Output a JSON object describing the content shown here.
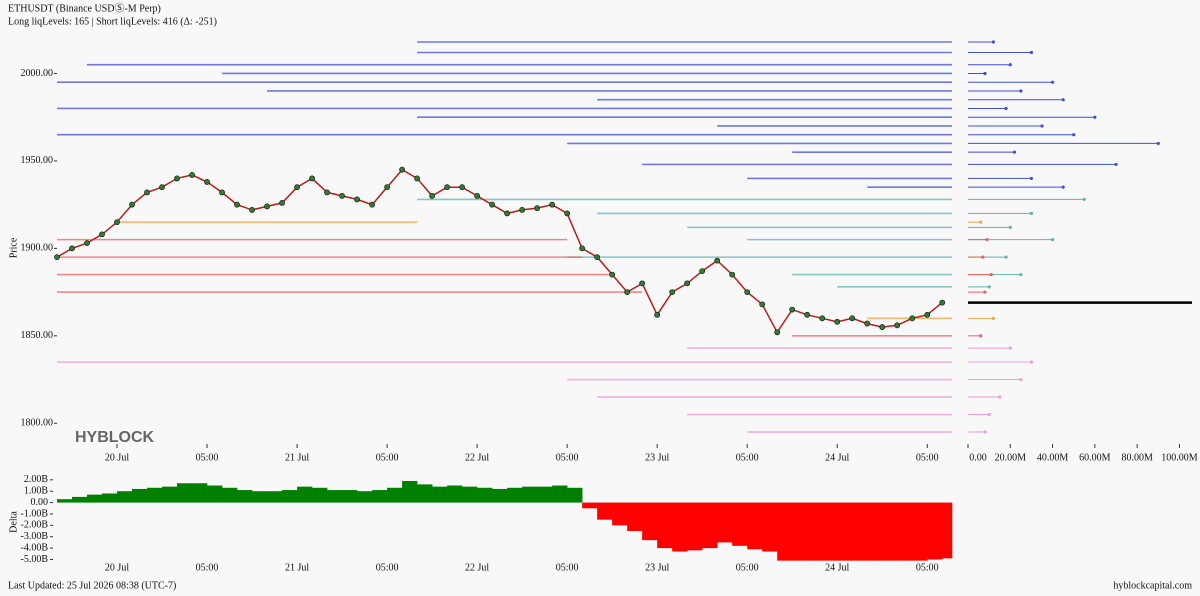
{
  "header": {
    "title": "ETHUSDT (Binance USDⓈ-M Perp)",
    "subtitle": "Long liqLevels: 165 | Short liqLevels: 416 (Δ: -251)",
    "watermark": "HYBLOCK"
  },
  "footer": {
    "updated": "Last Updated: 25 Jul 2026 08:38 (UTC-7)",
    "site": "hyblockcapital.com"
  },
  "chart_data": [
    {
      "type": "line",
      "y_label": "Price",
      "color": "#b71c1c",
      "marker_color": "#2e7d32",
      "current_color": "#000000",
      "x": [
        -8,
        -6,
        -4,
        -2,
        0,
        2,
        4,
        6,
        8,
        10,
        12,
        14,
        16,
        18,
        20,
        22,
        24,
        26,
        28,
        30,
        32,
        34,
        36,
        38,
        40,
        42,
        44,
        46,
        48,
        50,
        52,
        54,
        56,
        58,
        60,
        62,
        64,
        66,
        68,
        70,
        72,
        74,
        76,
        78,
        80,
        82,
        84,
        86,
        88,
        90,
        92,
        94,
        96,
        98,
        100,
        102,
        104,
        106,
        108,
        110
      ],
      "values": [
        1895,
        1900,
        1903,
        1908,
        1915,
        1925,
        1932,
        1935,
        1940,
        1942,
        1938,
        1932,
        1925,
        1922,
        1924,
        1926,
        1935,
        1940,
        1932,
        1930,
        1928,
        1925,
        1935,
        1945,
        1940,
        1930,
        1935,
        1935,
        1930,
        1925,
        1920,
        1922,
        1923,
        1925,
        1920,
        1900,
        1895,
        1885,
        1875,
        1880,
        1862,
        1875,
        1880,
        1887,
        1893,
        1885,
        1875,
        1868,
        1852,
        1865,
        1862,
        1860,
        1858,
        1860,
        1857,
        1855,
        1856,
        1860,
        1862,
        1869
      ],
      "xlim": [
        -8,
        111.3
      ],
      "ylim": [
        1779,
        2022
      ],
      "xticks": [
        {
          "value": 0,
          "label": "20 Jul"
        },
        {
          "value": 12,
          "label": "05:00"
        },
        {
          "value": 24,
          "label": "21 Jul"
        },
        {
          "value": 36,
          "label": "05:00"
        },
        {
          "value": 48,
          "label": "22 Jul"
        },
        {
          "value": 60,
          "label": "05:00"
        },
        {
          "value": 72,
          "label": "23 Jul"
        },
        {
          "value": 84,
          "label": "05:00"
        },
        {
          "value": 96,
          "label": "24 Jul"
        },
        {
          "value": 108,
          "label": "05:00"
        }
      ],
      "yticks": [
        {
          "value": 1800,
          "label": "1800.00"
        },
        {
          "value": 1850,
          "label": "1850.00"
        },
        {
          "value": 1900,
          "label": "1900.00"
        },
        {
          "value": 1950,
          "label": "1950.00"
        },
        {
          "value": 2000,
          "label": "2000.00"
        }
      ],
      "levels": [
        {
          "price": 2018,
          "start": 40,
          "end": 111.3,
          "size": 12,
          "color": "#3f4fd6"
        },
        {
          "price": 2012,
          "start": 40,
          "end": 111.3,
          "size": 30,
          "color": "#3f4fd6"
        },
        {
          "price": 2005,
          "start": -4,
          "end": 111.3,
          "size": 20,
          "color": "#3f4fd6"
        },
        {
          "price": 2000,
          "start": 14,
          "end": 111.3,
          "size": 8,
          "color": "#3f4fd6"
        },
        {
          "price": 1995,
          "start": -8,
          "end": 111.3,
          "size": 40,
          "color": "#3f4fd6"
        },
        {
          "price": 1990,
          "start": 20,
          "end": 111.3,
          "size": 25,
          "color": "#3f4fd6"
        },
        {
          "price": 1985,
          "start": 64,
          "end": 111.3,
          "size": 45,
          "color": "#3f4fd6"
        },
        {
          "price": 1980,
          "start": -8,
          "end": 111.3,
          "size": 18,
          "color": "#3f4fd6"
        },
        {
          "price": 1975,
          "start": 40,
          "end": 111.3,
          "size": 60,
          "color": "#3f4fd6"
        },
        {
          "price": 1970,
          "start": 80,
          "end": 111.3,
          "size": 35,
          "color": "#3f4fd6"
        },
        {
          "price": 1965,
          "start": -8,
          "end": 111.3,
          "size": 50,
          "color": "#3f4fd6"
        },
        {
          "price": 1960,
          "start": 60,
          "end": 111.3,
          "size": 90,
          "color": "#3f4fd6"
        },
        {
          "price": 1955,
          "start": 90,
          "end": 111.3,
          "size": 22,
          "color": "#3f4fd6"
        },
        {
          "price": 1948,
          "start": 70,
          "end": 111.3,
          "size": 70,
          "color": "#3f4fd6"
        },
        {
          "price": 1940,
          "start": 84,
          "end": 111.3,
          "size": 30,
          "color": "#3f4fd6"
        },
        {
          "price": 1935,
          "start": 100,
          "end": 111.3,
          "size": 45,
          "color": "#3f4fd6"
        },
        {
          "price": 1928,
          "start": 40,
          "end": 111.3,
          "size": 55,
          "color": "#5fb3b0"
        },
        {
          "price": 1920,
          "start": 64,
          "end": 111.3,
          "size": 30,
          "color": "#5fb3b0"
        },
        {
          "price": 1912,
          "start": 76,
          "end": 111.3,
          "size": 20,
          "color": "#5fb3b0"
        },
        {
          "price": 1905,
          "start": 84,
          "end": 111.3,
          "size": 40,
          "color": "#5fb3b0"
        },
        {
          "price": 1895,
          "start": 60,
          "end": 111.3,
          "size": 18,
          "color": "#5fb3b0"
        },
        {
          "price": 1885,
          "start": 90,
          "end": 111.3,
          "size": 25,
          "color": "#5fb3b0"
        },
        {
          "price": 1878,
          "start": 96,
          "end": 111.3,
          "size": 10,
          "color": "#5fb3b0"
        },
        {
          "price": 1915,
          "start": 0,
          "end": 40,
          "size": 6,
          "color": "#f5a04a"
        },
        {
          "price": 1905,
          "start": -8,
          "end": 60,
          "size": 9,
          "color": "#f06060"
        },
        {
          "price": 1895,
          "start": -8,
          "end": 62,
          "size": 7,
          "color": "#f06060"
        },
        {
          "price": 1885,
          "start": -8,
          "end": 66,
          "size": 11,
          "color": "#f06060"
        },
        {
          "price": 1875,
          "start": -8,
          "end": 70,
          "size": 8,
          "color": "#f06060"
        },
        {
          "price": 1860,
          "start": 100,
          "end": 111.3,
          "size": 12,
          "color": "#f5a04a"
        },
        {
          "price": 1850,
          "start": 90,
          "end": 111.3,
          "size": 6,
          "color": "#f06060"
        },
        {
          "price": 1843,
          "start": 76,
          "end": 111.3,
          "size": 20,
          "color": "#f29ad8"
        },
        {
          "price": 1835,
          "start": -8,
          "end": 111.3,
          "size": 30,
          "color": "#f29ad8"
        },
        {
          "price": 1825,
          "start": 60,
          "end": 111.3,
          "size": 25,
          "color": "#f29ad8"
        },
        {
          "price": 1815,
          "start": 64,
          "end": 111.3,
          "size": 15,
          "color": "#f29ad8"
        },
        {
          "price": 1805,
          "start": 76,
          "end": 111.3,
          "size": 10,
          "color": "#f29ad8"
        },
        {
          "price": 1795,
          "start": 84,
          "end": 111.3,
          "size": 8,
          "color": "#f29ad8"
        }
      ],
      "size_xlim": [
        0,
        105
      ],
      "size_xticks": [
        {
          "value": 0,
          "label": "0.00"
        },
        {
          "value": 20,
          "label": "20.00M"
        },
        {
          "value": 40,
          "label": "40.00M"
        },
        {
          "value": 60,
          "label": "60.00M"
        },
        {
          "value": 80,
          "label": "80.00M"
        },
        {
          "value": 100,
          "label": "100.00M"
        }
      ]
    },
    {
      "type": "step-area",
      "y_label": "Delta",
      "positive_color": "#008000",
      "negative_color": "#ff0000",
      "x": [
        -8,
        -6,
        -4,
        -2,
        0,
        2,
        4,
        6,
        8,
        10,
        12,
        14,
        16,
        18,
        20,
        22,
        24,
        26,
        28,
        30,
        32,
        34,
        36,
        38,
        40,
        42,
        44,
        46,
        48,
        50,
        52,
        54,
        56,
        58,
        60,
        62,
        64,
        66,
        68,
        70,
        72,
        74,
        76,
        78,
        80,
        82,
        84,
        86,
        88,
        90,
        92,
        94,
        96,
        98,
        100,
        102,
        104,
        106,
        108,
        110
      ],
      "values": [
        0.3,
        0.5,
        0.7,
        0.8,
        1.0,
        1.2,
        1.3,
        1.4,
        1.7,
        1.7,
        1.5,
        1.3,
        1.1,
        1.0,
        1.0,
        1.1,
        1.4,
        1.3,
        1.1,
        1.1,
        1.0,
        1.1,
        1.3,
        1.9,
        1.6,
        1.4,
        1.5,
        1.4,
        1.3,
        1.2,
        1.3,
        1.4,
        1.4,
        1.5,
        1.3,
        -0.5,
        -1.5,
        -2.0,
        -2.5,
        -3.3,
        -4.0,
        -4.3,
        -4.2,
        -4.0,
        -3.5,
        -3.8,
        -4.1,
        -4.3,
        -5.1,
        -5.1,
        -5.1,
        -5.1,
        -5.1,
        -5.1,
        -5.1,
        -5.1,
        -5.1,
        -5.1,
        -5.0,
        -4.9
      ],
      "xlim": [
        -8,
        111.3
      ],
      "ylim": [
        -6.1,
        2.6
      ],
      "xticks": [
        {
          "value": 0,
          "label": "20 Jul"
        },
        {
          "value": 12,
          "label": "05:00"
        },
        {
          "value": 24,
          "label": "21 Jul"
        },
        {
          "value": 36,
          "label": "05:00"
        },
        {
          "value": 48,
          "label": "22 Jul"
        },
        {
          "value": 60,
          "label": "05:00"
        },
        {
          "value": 72,
          "label": "23 Jul"
        },
        {
          "value": 84,
          "label": "05:00"
        },
        {
          "value": 96,
          "label": "24 Jul"
        },
        {
          "value": 108,
          "label": "05:00"
        }
      ],
      "yticks": [
        {
          "value": -5,
          "label": "-5.00B"
        },
        {
          "value": -4,
          "label": "-4.00B"
        },
        {
          "value": -3,
          "label": "-3.00B"
        },
        {
          "value": -2,
          "label": "-2.00B"
        },
        {
          "value": -1,
          "label": "-1.00B"
        },
        {
          "value": 0,
          "label": "0.00"
        },
        {
          "value": 1,
          "label": "1.00B"
        },
        {
          "value": 2,
          "label": "2.00B"
        }
      ]
    }
  ]
}
